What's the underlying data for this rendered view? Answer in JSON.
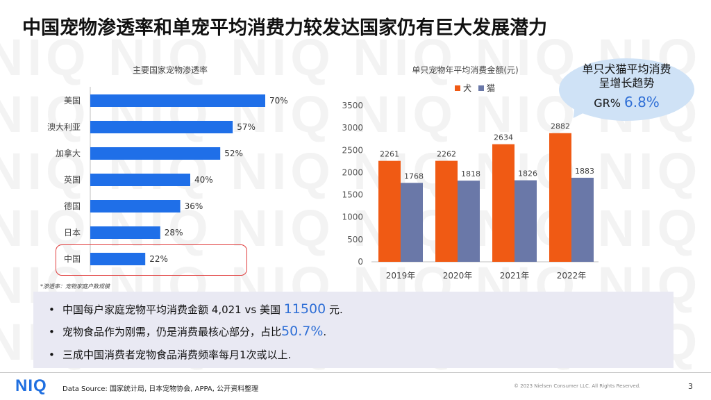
{
  "slide": {
    "title": "中国宠物渗透率和单宠平均消费力较发达国家仍有巨大发展潜力",
    "watermark_text": "NIQ",
    "footnote": "*渗透率：宠物家庭户数规模",
    "bubble": {
      "line1": "单只犬猫平均消费",
      "line2": "呈增长趋势",
      "prefix": "GR%",
      "value": "6.8%"
    },
    "bullets": [
      {
        "text": "中国每户家庭宠物平均消费金额 4,021 vs 美国 ",
        "highlight": "11500",
        "suffix": " 元."
      },
      {
        "text": "宠物食品作为刚需，仍是消费最核心部分，占比",
        "highlight": "50.7%",
        "suffix": "."
      },
      {
        "text": "三成中国消费者宠物食品消费频率每月1次或以上.",
        "highlight": "",
        "suffix": ""
      }
    ],
    "footer": {
      "logo": "NIQ",
      "source": "Data Source: 国家统计局, 日本宠物协会, APPA, 公开资料整理",
      "copyright": "© 2023 Nielsen Consumer LLC. All Rights Reserved.",
      "page": "3"
    }
  },
  "chart_data": [
    {
      "type": "bar",
      "orientation": "horizontal",
      "title": "主要国家宠物渗透率",
      "categories": [
        "美国",
        "澳大利亚",
        "加拿大",
        "英国",
        "德国",
        "日本",
        "中国"
      ],
      "values": [
        70,
        57,
        52,
        40,
        36,
        28,
        22
      ],
      "labels": [
        "70%",
        "57%",
        "52%",
        "40%",
        "36%",
        "28%",
        "22%"
      ],
      "highlight_category": "中国",
      "color": "#1f6fe8"
    },
    {
      "type": "bar",
      "title": "单只宠物年平均消费金额(元)",
      "categories": [
        "2019年",
        "2020年",
        "2021年",
        "2022年"
      ],
      "series": [
        {
          "name": "犬",
          "values": [
            2261,
            2262,
            2634,
            2882
          ],
          "color": "#f05a14"
        },
        {
          "name": "猫",
          "values": [
            1768,
            1818,
            1826,
            1883
          ],
          "color": "#6a78a8"
        }
      ],
      "ylim": [
        0,
        3500
      ],
      "yticks": [
        "0",
        "500",
        "1000",
        "1500",
        "2000",
        "2500",
        "3000",
        "3500"
      ],
      "legend": "top-left"
    }
  ]
}
